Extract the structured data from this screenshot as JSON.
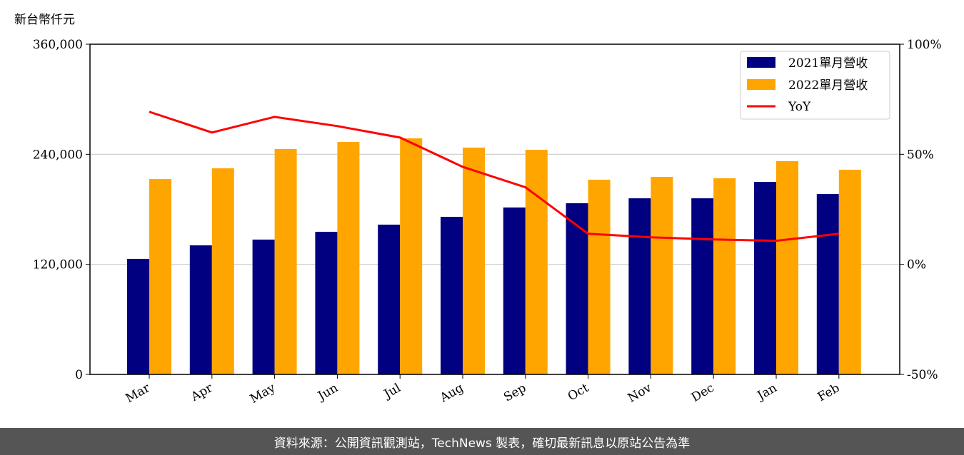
{
  "chart_data": {
    "type": "bar",
    "unit_label": "新台幣仟元",
    "categories": [
      "Mar",
      "Apr",
      "May",
      "Jun",
      "Jul",
      "Aug",
      "Sep",
      "Oct",
      "Nov",
      "Dec",
      "Jan",
      "Feb"
    ],
    "series": [
      {
        "name": "2021單月營收",
        "color": "#000080",
        "values": [
          126000,
          140700,
          147000,
          155500,
          163300,
          171800,
          182000,
          186600,
          192000,
          192000,
          209900,
          196700
        ]
      },
      {
        "name": "2022單月營收",
        "color": "#FFA500",
        "values": [
          213000,
          224700,
          245700,
          253500,
          257400,
          247300,
          244900,
          212300,
          215400,
          213800,
          232500,
          223100
        ]
      }
    ],
    "line_series": {
      "name": "YoY",
      "color": "#FF0000",
      "axis": "right",
      "values": [
        69.3,
        59.9,
        67.0,
        62.8,
        57.6,
        44.3,
        35.0,
        13.9,
        12.3,
        11.3,
        10.7,
        13.9
      ]
    },
    "ylim": [
      0,
      360000
    ],
    "y_ticks": [
      "0",
      "120,000",
      "240,000",
      "360,000"
    ],
    "y_tick_values": [
      0,
      120000,
      240000,
      360000
    ],
    "y2lim": [
      -50,
      100
    ],
    "y2_ticks": [
      "-50%",
      "0%",
      "50%",
      "100%"
    ],
    "y2_tick_values": [
      -50,
      0,
      50,
      100
    ],
    "grid": "horizontal",
    "legend_position": "top-right"
  },
  "footer": {
    "source": "資料來源：公開資訊觀測站，TechNews 製表，確切最新訊息以原站公告為準"
  }
}
